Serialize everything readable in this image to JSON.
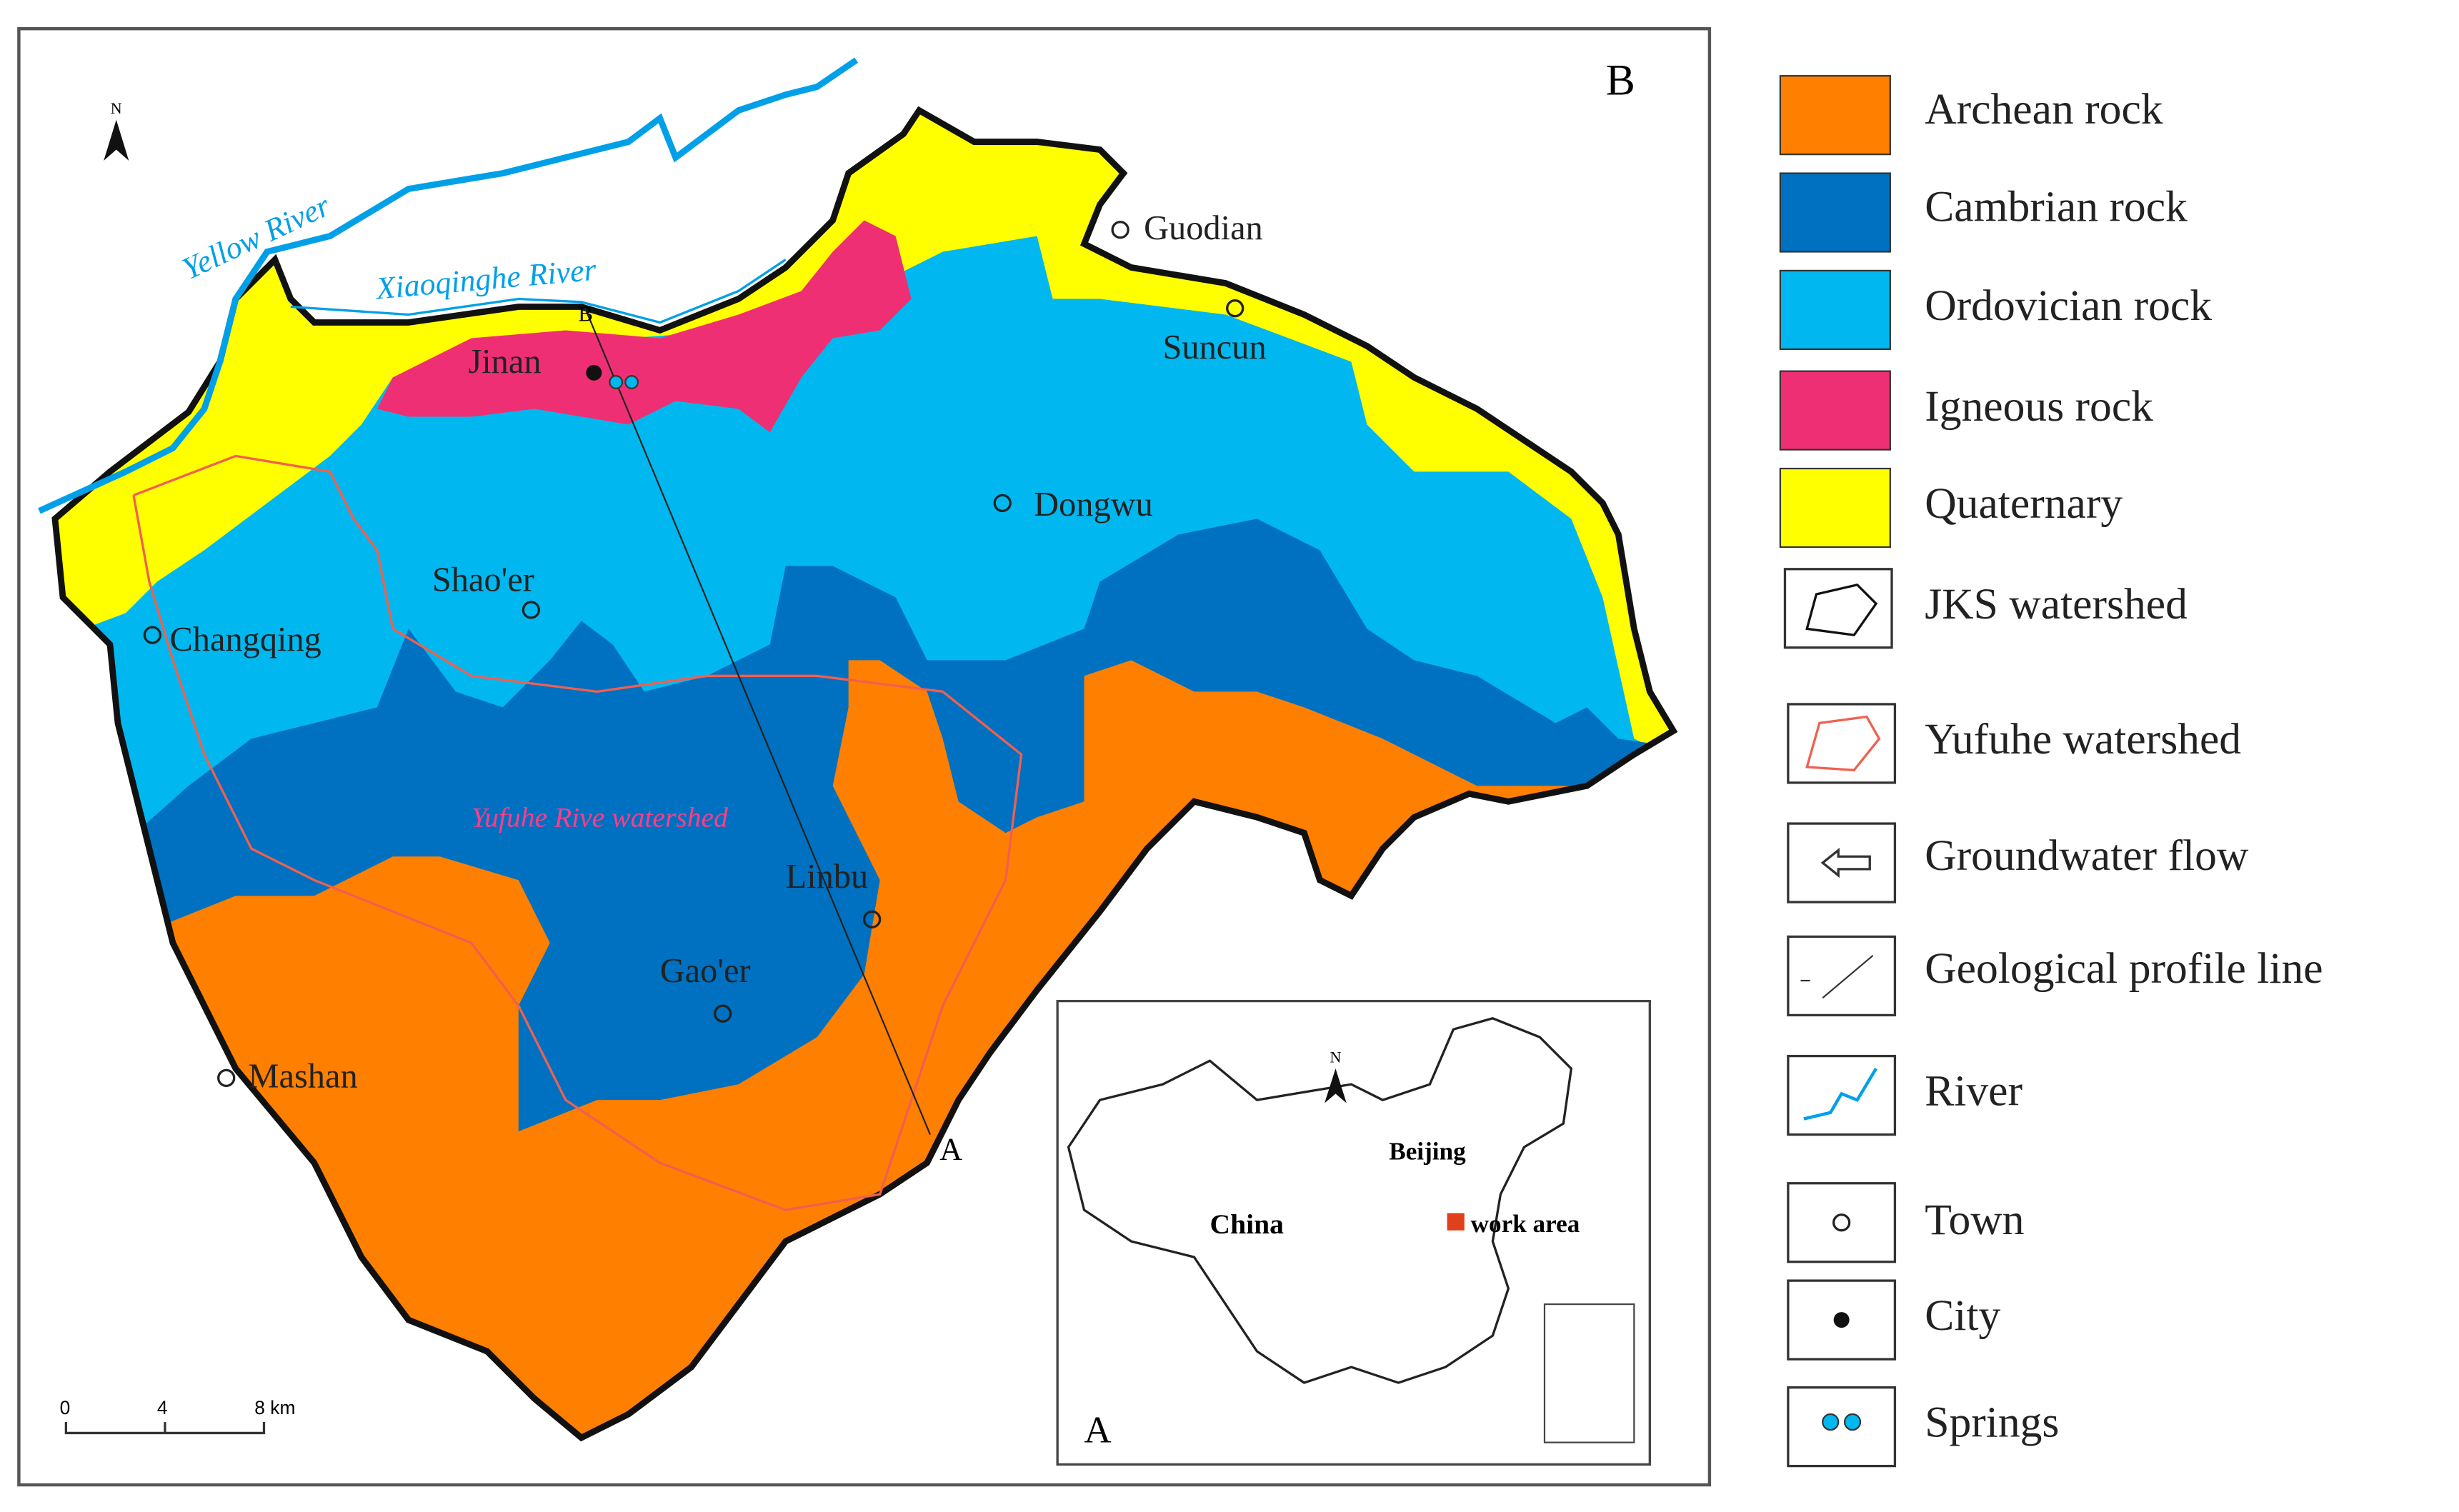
{
  "map": {
    "panel_label": "B",
    "north": "N",
    "rivers": [
      "Yellow River",
      "Xiaoqinghe River"
    ],
    "towns": [
      "Guodian",
      "Suncun",
      "Jinan",
      "Dongwu",
      "Shao'er",
      "Changqing",
      "Linbu",
      "Gao'er",
      "Mashan"
    ],
    "watershed_label": "Yufuhe Rive watershed",
    "profile": {
      "start": "A",
      "end": "B"
    },
    "scale_bar": [
      "0",
      "4",
      "8 km"
    ]
  },
  "inset": {
    "panel_label": "A",
    "north": "N",
    "labels": [
      "Beijing",
      "China",
      "work area"
    ]
  },
  "legend": [
    "Archean rock",
    "Cambrian rock",
    "Ordovician rock",
    "Igneous rock",
    "Quaternary",
    "JKS watershed",
    "Yufuhe watershed",
    "Groundwater flow",
    "Geological profile line",
    "River",
    "Town",
    "City",
    "Springs"
  ]
}
